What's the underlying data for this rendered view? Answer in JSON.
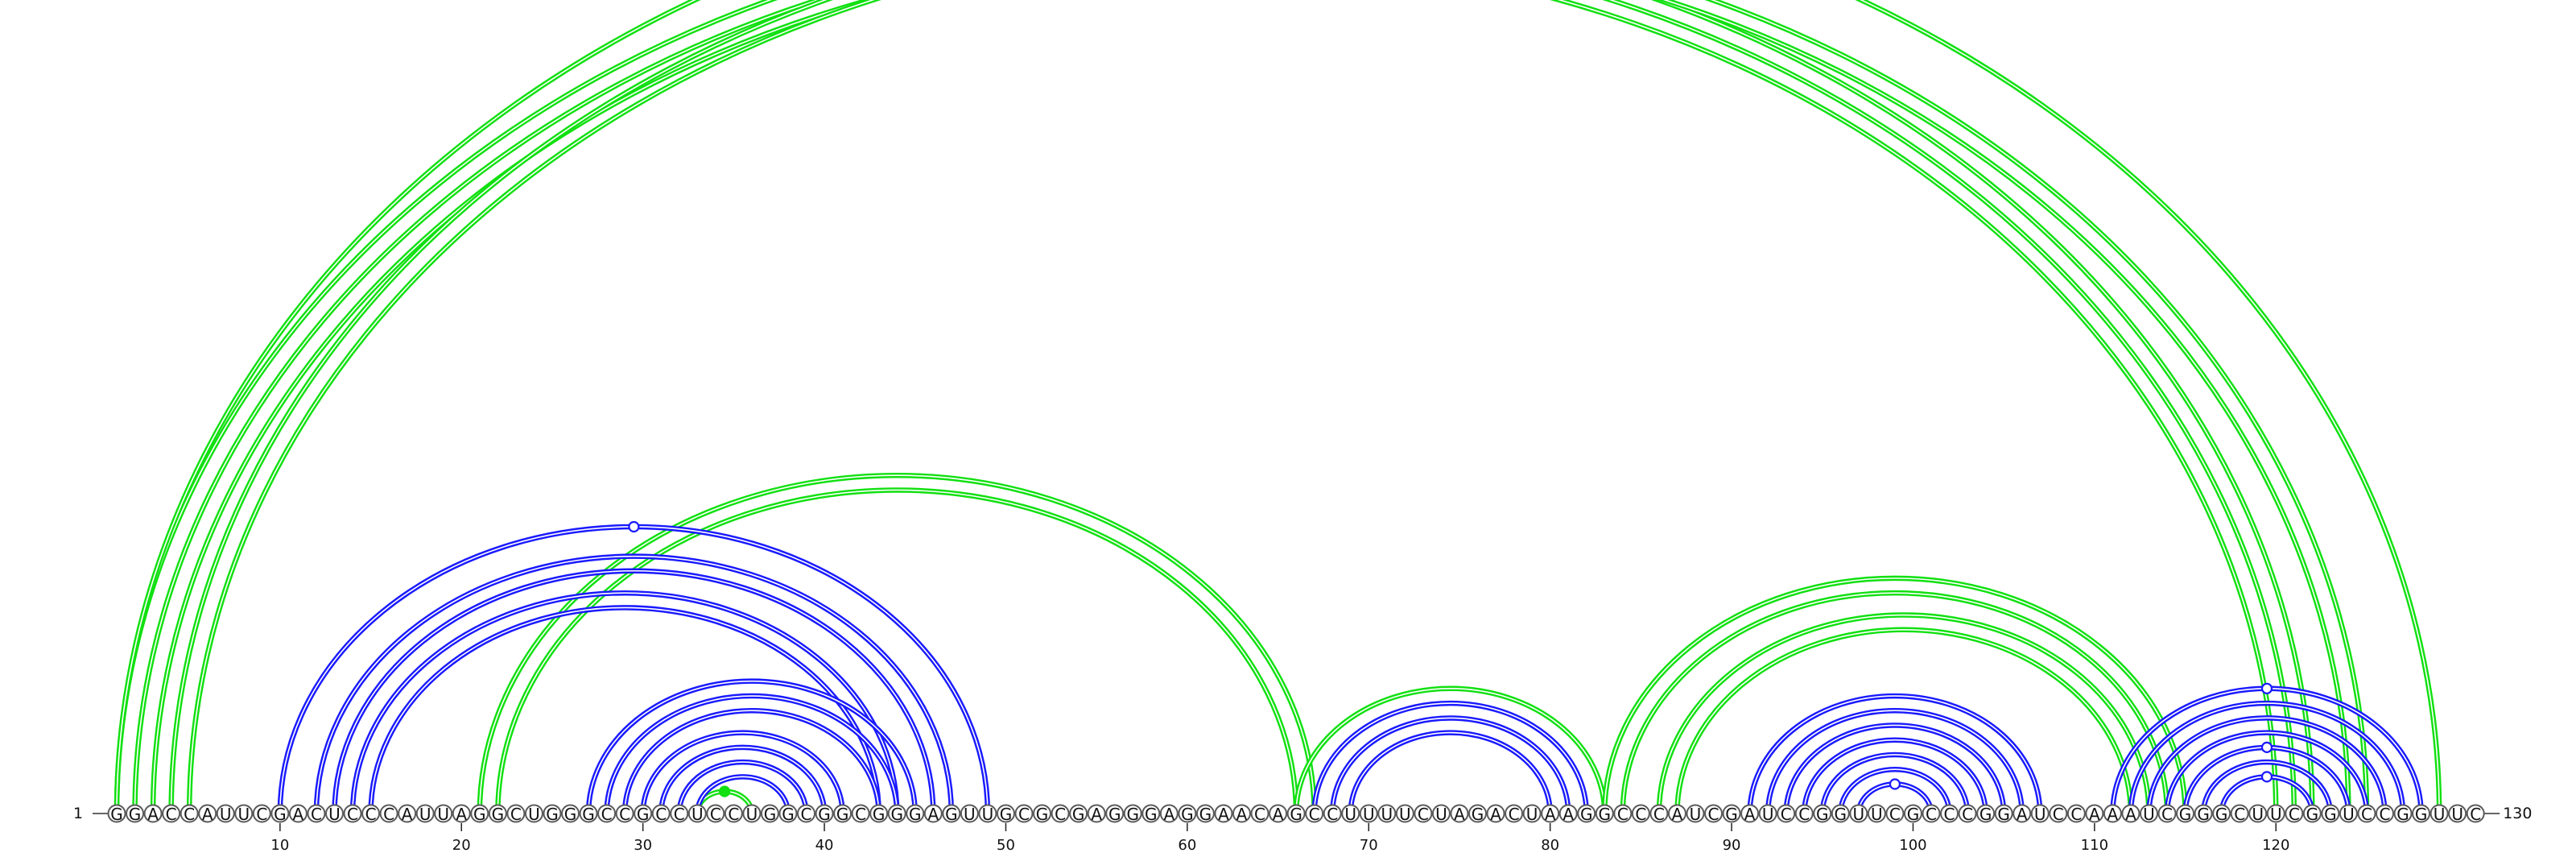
{
  "diagram": {
    "sequence": "GGACCAUUCGACUCCCAUUAGGCUGGGCCGCCUCCUGGCGGCGGGAGUUGCGCGAGGGAGGAACAGCCUUUUCUAGACUAAGGCCCAUCGAUCCGGUUCGCCCGGAUCCAAAUCGGGCUUCGGUCCGGUUC",
    "start_label": "1",
    "end_label": "130",
    "ticks": [
      "10",
      "20",
      "30",
      "40",
      "50",
      "60",
      "70",
      "80",
      "90",
      "100",
      "110",
      "120"
    ],
    "colors": {
      "blue_arc": "#1a1aff",
      "green_arc": "#11e011",
      "nucleotide_outline": "#5a5a5a",
      "text": "#111111"
    },
    "green_arcs": [
      {
        "i": 1,
        "j": 122
      },
      {
        "i": 2,
        "j": 121
      },
      {
        "i": 3,
        "j": 120
      },
      {
        "i": 4,
        "j": 125
      },
      {
        "i": 5,
        "j": 124
      },
      {
        "i": 1,
        "j": 129
      },
      {
        "i": 21,
        "j": 67
      },
      {
        "i": 22,
        "j": 66
      },
      {
        "i": 66,
        "j": 83
      },
      {
        "i": 83,
        "j": 115
      },
      {
        "i": 84,
        "j": 114
      },
      {
        "i": 86,
        "j": 113
      },
      {
        "i": 87,
        "j": 112
      },
      {
        "i": 33,
        "j": 36
      }
    ],
    "blue_arcs": [
      {
        "i": 10,
        "j": 49
      },
      {
        "i": 12,
        "j": 47
      },
      {
        "i": 13,
        "j": 46
      },
      {
        "i": 14,
        "j": 44
      },
      {
        "i": 15,
        "j": 43
      },
      {
        "i": 27,
        "j": 45
      },
      {
        "i": 28,
        "j": 44
      },
      {
        "i": 29,
        "j": 43
      },
      {
        "i": 30,
        "j": 41
      },
      {
        "i": 31,
        "j": 40
      },
      {
        "i": 32,
        "j": 39
      },
      {
        "i": 33,
        "j": 38
      },
      {
        "i": 67,
        "j": 82
      },
      {
        "i": 68,
        "j": 81
      },
      {
        "i": 69,
        "j": 80
      },
      {
        "i": 91,
        "j": 107
      },
      {
        "i": 92,
        "j": 106
      },
      {
        "i": 93,
        "j": 105
      },
      {
        "i": 94,
        "j": 104
      },
      {
        "i": 95,
        "j": 103
      },
      {
        "i": 96,
        "j": 102
      },
      {
        "i": 97,
        "j": 101
      },
      {
        "i": 111,
        "j": 128
      },
      {
        "i": 112,
        "j": 127
      },
      {
        "i": 113,
        "j": 126
      },
      {
        "i": 114,
        "j": 125
      },
      {
        "i": 115,
        "j": 124
      },
      {
        "i": 116,
        "j": 123
      },
      {
        "i": 117,
        "j": 122
      }
    ],
    "pseudoknot_markers": [
      {
        "i": 1,
        "j": 129,
        "color": "green",
        "filled": false
      },
      {
        "i": 10,
        "j": 49,
        "color": "blue",
        "filled": false
      },
      {
        "i": 33,
        "j": 36,
        "color": "green",
        "filled": true
      },
      {
        "i": 97,
        "j": 101,
        "color": "blue",
        "filled": false
      },
      {
        "i": 111,
        "j": 128,
        "color": "blue",
        "filled": false
      },
      {
        "i": 115,
        "j": 124,
        "color": "blue",
        "filled": false
      },
      {
        "i": 117,
        "j": 122,
        "color": "blue",
        "filled": false
      }
    ]
  }
}
